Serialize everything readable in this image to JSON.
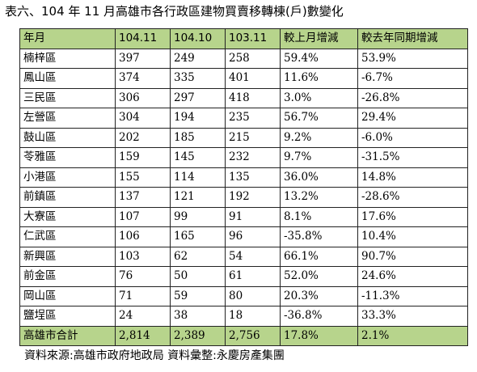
{
  "title": "表六、104 年 11 月高雄市各行政區建物買賣移轉棟(戶)數變化",
  "headers": [
    "年月",
    "104.11",
    "104.10",
    "103.11",
    "較上月增減",
    "較去年同期增減"
  ],
  "rows": [
    [
      "楠梓區",
      "397",
      "249",
      "258",
      "59.4%",
      "53.9%"
    ],
    [
      "鳳山區",
      "374",
      "335",
      "401",
      "11.6%",
      "-6.7%"
    ],
    [
      "三民區",
      "306",
      "297",
      "418",
      "3.0%",
      "-26.8%"
    ],
    [
      "左營區",
      "304",
      "194",
      "235",
      "56.7%",
      "29.4%"
    ],
    [
      "鼓山區",
      "202",
      "185",
      "215",
      "9.2%",
      "-6.0%"
    ],
    [
      "苓雅區",
      "159",
      "145",
      "232",
      "9.7%",
      "-31.5%"
    ],
    [
      "小港區",
      "155",
      "114",
      "135",
      "36.0%",
      "14.8%"
    ],
    [
      "前鎮區",
      "137",
      "121",
      "192",
      "13.2%",
      "-28.6%"
    ],
    [
      "大寮區",
      "107",
      "99",
      "91",
      "8.1%",
      "17.6%"
    ],
    [
      "仁武區",
      "106",
      "165",
      "96",
      "-35.8%",
      "10.4%"
    ],
    [
      "新興區",
      "103",
      "62",
      "54",
      "66.1%",
      "90.7%"
    ],
    [
      "前金區",
      "76",
      "50",
      "61",
      "52.0%",
      "24.6%"
    ],
    [
      "岡山區",
      "71",
      "59",
      "80",
      "20.3%",
      "-11.3%"
    ],
    [
      "鹽埕區",
      "24",
      "38",
      "18",
      "-36.8%",
      "33.3%"
    ]
  ],
  "total": [
    "高雄市合計",
    "2,814",
    "2,389",
    "2,756",
    "17.8%",
    "2.1%"
  ],
  "footer": "資料來源:高雄市政府地政局  資料彙整:永慶房產集團"
}
